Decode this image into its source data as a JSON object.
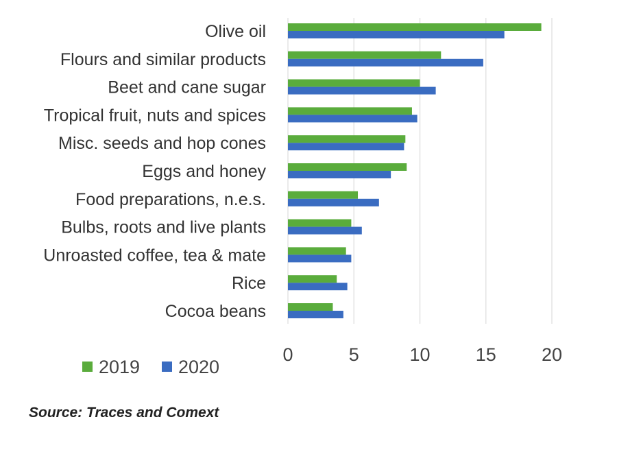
{
  "page": {
    "clipped_title": "",
    "source": "Source: Traces and Comext"
  },
  "chart_data": {
    "type": "bar",
    "orientation": "horizontal",
    "categories": [
      "Olive oil",
      "Flours and similar products",
      "Beet and cane sugar",
      "Tropical fruit, nuts and spices",
      "Misc. seeds and hop cones",
      "Eggs and honey",
      "Food preparations, n.e.s.",
      "Bulbs, roots and live plants",
      "Unroasted coffee, tea & mate",
      "Rice",
      "Cocoa beans"
    ],
    "series": [
      {
        "name": "2019",
        "color": "#5aac3c",
        "values": [
          19.2,
          11.6,
          10.0,
          9.4,
          8.9,
          9.0,
          5.3,
          4.8,
          4.4,
          3.7,
          3.4
        ]
      },
      {
        "name": "2020",
        "color": "#3a6cc1",
        "values": [
          16.4,
          14.8,
          11.2,
          9.8,
          8.8,
          7.8,
          6.9,
          5.6,
          4.8,
          4.5,
          4.2
        ]
      }
    ],
    "xlim": [
      0,
      20
    ],
    "xticks": [
      0,
      5,
      10,
      15,
      20
    ],
    "grid": true,
    "legend_position": "bottom-left",
    "title": "",
    "xlabel": "",
    "ylabel": ""
  }
}
